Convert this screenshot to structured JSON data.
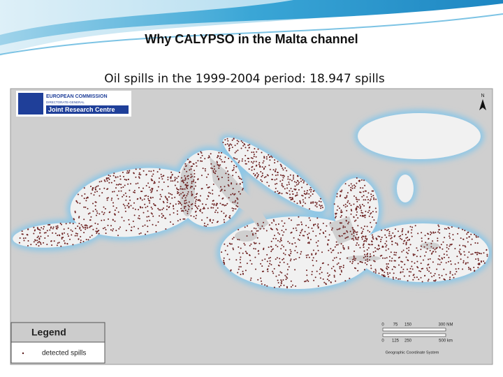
{
  "slide": {
    "title": "Why CALYPSO in the Malta channel",
    "subtitle": "Oil spills in the 1999-2004 period: 18.947 spills"
  },
  "logo": {
    "org": "EUROPEAN COMMISSION",
    "dg": "DIRECTORATE-GENERAL",
    "centre": "Joint Research Centre"
  },
  "map": {
    "north": "N",
    "legend": {
      "title": "Legend",
      "item": "detected spills"
    },
    "scale": {
      "nm": [
        "0",
        "75",
        "150",
        "300 NM"
      ],
      "km": [
        "0",
        "125",
        "250",
        "500 km"
      ],
      "system": "Geographic Coordinate System"
    }
  }
}
